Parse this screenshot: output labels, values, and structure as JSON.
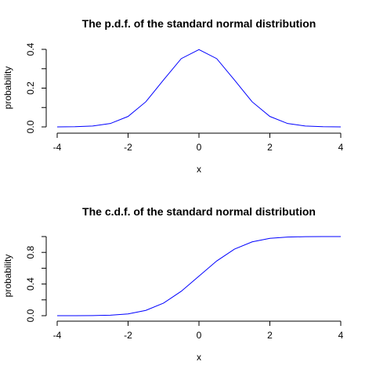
{
  "chart_data": [
    {
      "type": "line",
      "title": "The p.d.f. of the standard normal distribution",
      "xlabel": "x",
      "ylabel": "probability",
      "xlim": [
        -4,
        4
      ],
      "ylim": [
        0,
        0.4
      ],
      "xticks": [
        -4,
        -2,
        0,
        2,
        4
      ],
      "yticks": [
        0.0,
        0.1,
        0.2,
        0.3,
        0.4
      ],
      "ytick_labels": [
        "0.0",
        "",
        "0.2",
        "",
        "0.4"
      ],
      "series": [
        {
          "color": "#0000ff",
          "x": [
            -4.0,
            -3.5,
            -3.0,
            -2.5,
            -2.0,
            -1.5,
            -1.0,
            -0.5,
            0.0,
            0.5,
            1.0,
            1.5,
            2.0,
            2.5,
            3.0,
            3.5,
            4.0
          ],
          "y": [
            0.0001,
            0.0009,
            0.0044,
            0.0175,
            0.054,
            0.1295,
            0.242,
            0.3521,
            0.3989,
            0.3521,
            0.242,
            0.1295,
            0.054,
            0.0175,
            0.0044,
            0.0009,
            0.0001
          ]
        }
      ],
      "grid": false
    },
    {
      "type": "line",
      "title": "The c.d.f. of the standard normal distribution",
      "xlabel": "x",
      "ylabel": "probability",
      "xlim": [
        -4,
        4
      ],
      "ylim": [
        0,
        1
      ],
      "xticks": [
        -4,
        -2,
        0,
        2,
        4
      ],
      "yticks": [
        0.0,
        0.2,
        0.4,
        0.6,
        0.8,
        1.0
      ],
      "ytick_labels": [
        "0.0",
        "",
        "0.4",
        "",
        "0.8",
        ""
      ],
      "series": [
        {
          "color": "#0000ff",
          "x": [
            -4.0,
            -3.5,
            -3.0,
            -2.5,
            -2.0,
            -1.5,
            -1.0,
            -0.5,
            0.0,
            0.5,
            1.0,
            1.5,
            2.0,
            2.5,
            3.0,
            3.5,
            4.0
          ],
          "y": [
            0.0,
            0.0002,
            0.0013,
            0.0062,
            0.0228,
            0.0668,
            0.1587,
            0.3085,
            0.5,
            0.6915,
            0.8413,
            0.9332,
            0.9772,
            0.9938,
            0.9987,
            0.9998,
            1.0
          ]
        }
      ],
      "grid": false
    }
  ]
}
